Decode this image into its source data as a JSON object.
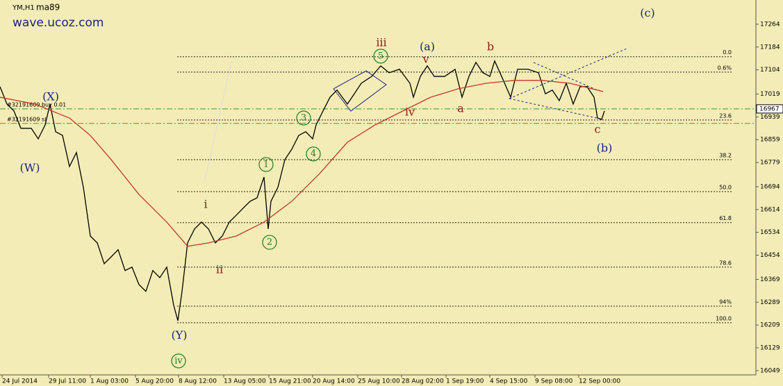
{
  "chart_data": {
    "type": "line",
    "symbol": "YM,H1",
    "site": "wave.ucoz.com",
    "xlim": [
      0,
      1088
    ],
    "ylim": [
      16034,
      17349
    ],
    "xticks": [
      {
        "value": 3,
        "label": "24 Jul 2014"
      },
      {
        "value": 70,
        "label": "29 Jul 11:00"
      },
      {
        "value": 130,
        "label": "1 Aug 03:00"
      },
      {
        "value": 195,
        "label": "5 Aug 20:00"
      },
      {
        "value": 257,
        "label": "8 Aug 12:00"
      },
      {
        "value": 322,
        "label": "13 Aug 05:00"
      },
      {
        "value": 387,
        "label": "15 Aug 21:00"
      },
      {
        "value": 450,
        "label": "20 Aug 14:00"
      },
      {
        "value": 515,
        "label": "25 Aug 10:00"
      },
      {
        "value": 578,
        "label": "28 Aug 02:00"
      },
      {
        "value": 642,
        "label": "1 Sep 19:00"
      },
      {
        "value": 705,
        "label": "4 Sep 15:00"
      },
      {
        "value": 770,
        "label": "9 Sep 08:00"
      },
      {
        "value": 833,
        "label": "12 Sep 00:00"
      }
    ],
    "yticks": [
      17264,
      17184,
      17104,
      17019,
      16939,
      16859,
      16779,
      16694,
      16614,
      16534,
      16454,
      16369,
      16289,
      16209,
      16129,
      16049
    ],
    "current_price": 16967,
    "orders": [
      {
        "label": "#32191609 buy 0.01",
        "price": 16967,
        "color": "#2e9a2e"
      },
      {
        "label": "#32191609 sl",
        "price": 16916,
        "color": "#e0502a"
      }
    ],
    "fib_levels": [
      {
        "label": "0.0",
        "price": 17150
      },
      {
        "label": "0.6%",
        "price": 17096
      },
      {
        "label": "23.6",
        "price": 16928
      },
      {
        "label": "38.2",
        "price": 16789
      },
      {
        "label": "50.0",
        "price": 16677
      },
      {
        "label": "61.8",
        "price": 16568
      },
      {
        "label": "78.6",
        "price": 16412
      },
      {
        "label": "94%",
        "price": 16275
      },
      {
        "label": "100.0",
        "price": 16217
      }
    ],
    "series": [
      {
        "name": "YM,H1",
        "color": "#000000",
        "x": [
          0,
          10,
          20,
          30,
          45,
          55,
          65,
          72,
          80,
          90,
          100,
          110,
          120,
          130,
          140,
          150,
          160,
          170,
          180,
          190,
          200,
          210,
          220,
          230,
          240,
          250,
          256,
          262,
          270,
          280,
          290,
          300,
          310,
          320,
          330,
          340,
          350,
          360,
          370,
          375,
          380,
          386,
          390,
          400,
          410,
          420,
          430,
          440,
          450,
          455,
          465,
          475,
          485,
          500,
          510,
          520,
          535,
          548,
          560,
          575,
          590,
          595,
          605,
          615,
          625,
          640,
          655,
          665,
          675,
          685,
          695,
          705,
          712,
          722,
          735,
          745,
          760,
          775,
          785,
          795,
          805,
          815,
          825,
          835,
          845,
          855,
          860,
          866,
          870
        ],
        "values": [
          17045,
          16984,
          16960,
          16899,
          16899,
          16862,
          16911,
          16984,
          16887,
          16874,
          16765,
          16814,
          16692,
          16521,
          16497,
          16424,
          16448,
          16473,
          16400,
          16412,
          16351,
          16327,
          16400,
          16375,
          16412,
          16278,
          16224,
          16327,
          16497,
          16546,
          16570,
          16546,
          16497,
          16521,
          16570,
          16594,
          16619,
          16643,
          16655,
          16692,
          16728,
          16546,
          16643,
          16692,
          16789,
          16826,
          16874,
          16887,
          16862,
          16911,
          16960,
          17008,
          17033,
          16984,
          17020,
          17057,
          17081,
          17118,
          17094,
          17106,
          17057,
          17008,
          17081,
          17118,
          17081,
          17081,
          17106,
          17008,
          17081,
          17130,
          17094,
          17081,
          17135,
          17081,
          17008,
          17106,
          17106,
          17094,
          17020,
          17033,
          16996,
          17057,
          16984,
          17045,
          17045,
          17008,
          16935,
          16930,
          16960
        ]
      },
      {
        "name": "ma89",
        "color": "#c0392b",
        "x": [
          0,
          50,
          100,
          130,
          160,
          200,
          240,
          270,
          300,
          340,
          380,
          420,
          460,
          500,
          540,
          580,
          620,
          660,
          700,
          740,
          780,
          820,
          868
        ],
        "values": [
          17008,
          16984,
          16935,
          16874,
          16789,
          16667,
          16570,
          16485,
          16497,
          16521,
          16570,
          16643,
          16740,
          16850,
          16911,
          16960,
          17008,
          17038,
          17057,
          17067,
          17067,
          17057,
          17028
        ]
      }
    ],
    "annotations": [
      {
        "text": "(c)",
        "x": 932,
        "y": 17301,
        "color": "#1a237e",
        "circled": false
      },
      {
        "text": "(X)",
        "x": 73,
        "y": 17008,
        "color": "#1a237e",
        "circled": false
      },
      {
        "text": "(W)",
        "x": 43,
        "y": 16758,
        "color": "#1a237e",
        "circled": false
      },
      {
        "text": "(Y)",
        "x": 258,
        "y": 16171,
        "color": "#1a237e",
        "circled": false
      },
      {
        "text": "iv",
        "x": 257,
        "y": 16083,
        "color": "#1e7a1e",
        "circled": true
      },
      {
        "text": "i",
        "x": 296,
        "y": 16631,
        "color": "#8b1a1a",
        "circled": false
      },
      {
        "text": "ii",
        "x": 316,
        "y": 16402,
        "color": "#8b1a1a",
        "circled": false
      },
      {
        "text": "1",
        "x": 383,
        "y": 16772,
        "color": "#1e7a1e",
        "circled": true
      },
      {
        "text": "2",
        "x": 388,
        "y": 16499,
        "color": "#1e7a1e",
        "circled": true
      },
      {
        "text": "3",
        "x": 437,
        "y": 16935,
        "color": "#1e7a1e",
        "circled": true
      },
      {
        "text": "4",
        "x": 451,
        "y": 16809,
        "color": "#1e7a1e",
        "circled": true
      },
      {
        "text": "iii",
        "x": 549,
        "y": 17198,
        "color": "#8b1a1a",
        "circled": false
      },
      {
        "text": "5",
        "x": 548,
        "y": 17152,
        "color": "#1e7a1e",
        "circled": true
      },
      {
        "text": "(a)",
        "x": 615,
        "y": 17184,
        "color": "#1a237e",
        "circled": false
      },
      {
        "text": "v",
        "x": 613,
        "y": 17140,
        "color": "#8b1a1a",
        "circled": false
      },
      {
        "text": "iv",
        "x": 590,
        "y": 16955,
        "color": "#8b1a1a",
        "circled": false
      },
      {
        "text": "a",
        "x": 663,
        "y": 16967,
        "color": "#8b1a1a",
        "circled": false
      },
      {
        "text": "b",
        "x": 706,
        "y": 17184,
        "color": "#8b1a1a",
        "circled": false
      },
      {
        "text": "c",
        "x": 860,
        "y": 16894,
        "color": "#8b1a1a",
        "circled": false
      },
      {
        "text": "(b)",
        "x": 870,
        "y": 16828,
        "color": "#1a237e",
        "circled": false
      }
    ]
  }
}
